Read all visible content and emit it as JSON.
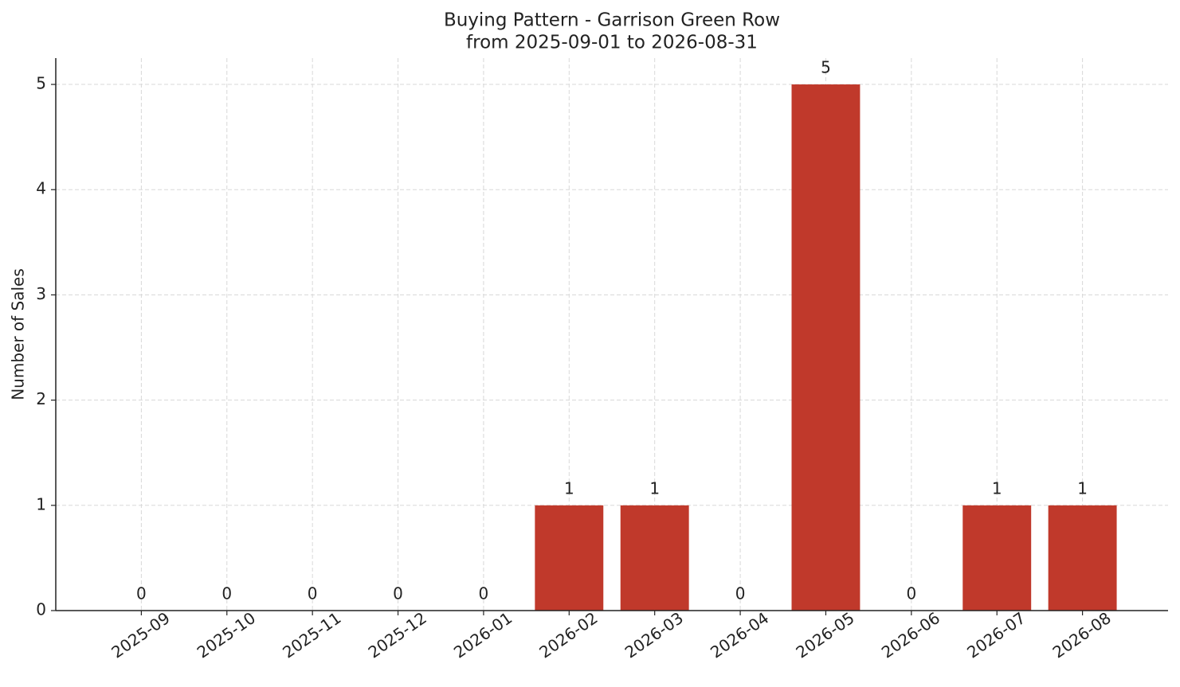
{
  "chart_data": {
    "type": "bar",
    "title": "Buying Pattern - Garrison Green Row",
    "subtitle": "from 2025-09-01 to 2026-08-31",
    "y_label": "Number of Sales",
    "categories": [
      "2025-09",
      "2025-10",
      "2025-11",
      "2025-12",
      "2026-01",
      "2026-02",
      "2026-03",
      "2026-04",
      "2026-05",
      "2026-06",
      "2026-07",
      "2026-08"
    ],
    "values": [
      0,
      0,
      0,
      0,
      0,
      1,
      1,
      0,
      5,
      0,
      1,
      1
    ],
    "color": "#c0392b",
    "ylim": [
      0,
      5.25
    ],
    "yticks": [
      0,
      1,
      2,
      3,
      4,
      5
    ],
    "grid": true
  }
}
